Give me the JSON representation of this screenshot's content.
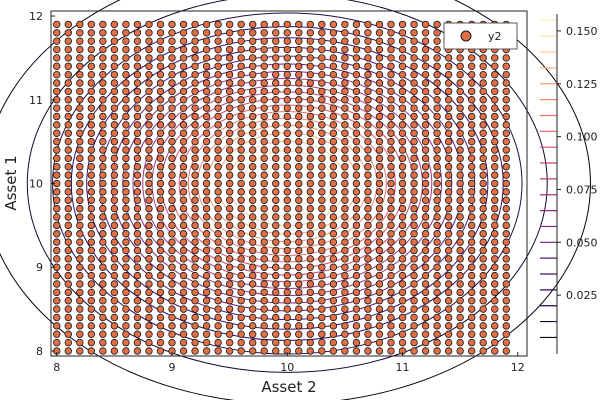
{
  "chart_data": {
    "type": "scatter",
    "overlay": "contour",
    "xlabel": "Asset 2",
    "ylabel": "Asset 1",
    "xlim": [
      7.95,
      12.08
    ],
    "ylim": [
      7.94,
      12.06
    ],
    "xticks": [
      "8",
      "9",
      "10",
      "11",
      "12"
    ],
    "yticks": [
      "8",
      "9",
      "10",
      "11",
      "12"
    ],
    "legend_position": "top-right",
    "series": [
      {
        "name": "y2",
        "marker": "circle",
        "color": "#e26f46",
        "grid_start": 8.0,
        "grid_end": 11.95,
        "grid_step": 0.1
      }
    ],
    "contour": {
      "function": "bivariate normal density",
      "center_x": 10,
      "center_y": 10,
      "sigma_x": 1.0,
      "sigma_y": 1.0,
      "levels": [
        0.005,
        0.0125,
        0.02,
        0.0275,
        0.035,
        0.0425,
        0.05,
        0.0575,
        0.065,
        0.0725,
        0.08,
        0.0875,
        0.095,
        0.1025,
        0.11,
        0.1175,
        0.125,
        0.1325,
        0.14,
        0.1475,
        0.155
      ],
      "colorscale": [
        "#000004",
        "#3b0f70",
        "#8c2981",
        "#de4968",
        "#fe9f6d",
        "#fcfdbf"
      ]
    },
    "colorbar": {
      "range": [
        0.0,
        0.158
      ],
      "ticks": [
        "0.025",
        "0.050",
        "0.075",
        "0.100",
        "0.125",
        "0.150"
      ]
    },
    "grid": false
  }
}
